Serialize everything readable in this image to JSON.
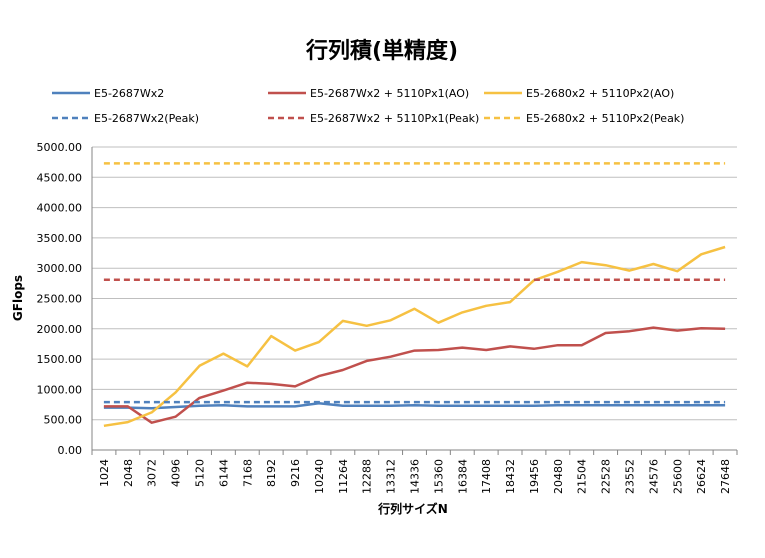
{
  "chart_data": {
    "type": "line",
    "title": "行列積(単精度)",
    "xlabel": "行列サイズN",
    "ylabel": "GFlops",
    "ylim": [
      0,
      5000
    ],
    "yticks": [
      "0.00",
      "500.00",
      "1000.00",
      "1500.00",
      "2000.00",
      "2500.00",
      "3000.00",
      "3500.00",
      "4000.00",
      "4500.00",
      "5000.00"
    ],
    "grid": true,
    "legend": "top",
    "categories": [
      "1024",
      "2048",
      "3072",
      "4096",
      "5120",
      "6144",
      "7168",
      "8192",
      "9216",
      "10240",
      "11264",
      "12288",
      "13312",
      "14336",
      "15360",
      "16384",
      "17408",
      "18432",
      "19456",
      "20480",
      "21504",
      "22528",
      "23552",
      "24576",
      "25600",
      "26624",
      "27648"
    ],
    "series": [
      {
        "name": "E5-2687Wx2",
        "color": "#4f81bd",
        "dashed": false,
        "values": [
          700,
          700,
          690,
          710,
          730,
          740,
          720,
          720,
          720,
          770,
          730,
          730,
          730,
          740,
          730,
          730,
          730,
          730,
          730,
          740,
          740,
          740,
          740,
          740,
          740,
          740,
          740
        ]
      },
      {
        "name": "E5-2687Wx2 + 5110Px1(AO)",
        "color": "#c0504d",
        "dashed": false,
        "values": [
          720,
          720,
          450,
          550,
          860,
          980,
          1110,
          1090,
          1050,
          1220,
          1320,
          1470,
          1540,
          1640,
          1650,
          1690,
          1650,
          1710,
          1670,
          1730,
          1730,
          1930,
          1960,
          2020,
          1970,
          2010,
          2000
        ]
      },
      {
        "name": "E5-2680x2 + 5110Px2(AO)",
        "color": "#f6c142",
        "dashed": false,
        "values": [
          400,
          460,
          620,
          950,
          1390,
          1590,
          1380,
          1880,
          1640,
          1780,
          2130,
          2050,
          2140,
          2330,
          2100,
          2270,
          2380,
          2440,
          2800,
          2940,
          3100,
          3050,
          2960,
          3070,
          2950,
          3230,
          3350
        ]
      },
      {
        "name": "E5-2687Wx2(Peak)",
        "color": "#4f81bd",
        "dashed": true,
        "values": [
          790,
          790,
          790,
          790,
          790,
          790,
          790,
          790,
          790,
          790,
          790,
          790,
          790,
          790,
          790,
          790,
          790,
          790,
          790,
          790,
          790,
          790,
          790,
          790,
          790,
          790,
          790
        ]
      },
      {
        "name": "E5-2687Wx2 + 5110Px1(Peak)",
        "color": "#c0504d",
        "dashed": true,
        "values": [
          2810,
          2810,
          2810,
          2810,
          2810,
          2810,
          2810,
          2810,
          2810,
          2810,
          2810,
          2810,
          2810,
          2810,
          2810,
          2810,
          2810,
          2810,
          2810,
          2810,
          2810,
          2810,
          2810,
          2810,
          2810,
          2810,
          2810
        ]
      },
      {
        "name": "E5-2680x2 + 5110Px2(Peak)",
        "color": "#f6c142",
        "dashed": true,
        "values": [
          4730,
          4730,
          4730,
          4730,
          4730,
          4730,
          4730,
          4730,
          4730,
          4730,
          4730,
          4730,
          4730,
          4730,
          4730,
          4730,
          4730,
          4730,
          4730,
          4730,
          4730,
          4730,
          4730,
          4730,
          4730,
          4730,
          4730
        ]
      }
    ]
  }
}
